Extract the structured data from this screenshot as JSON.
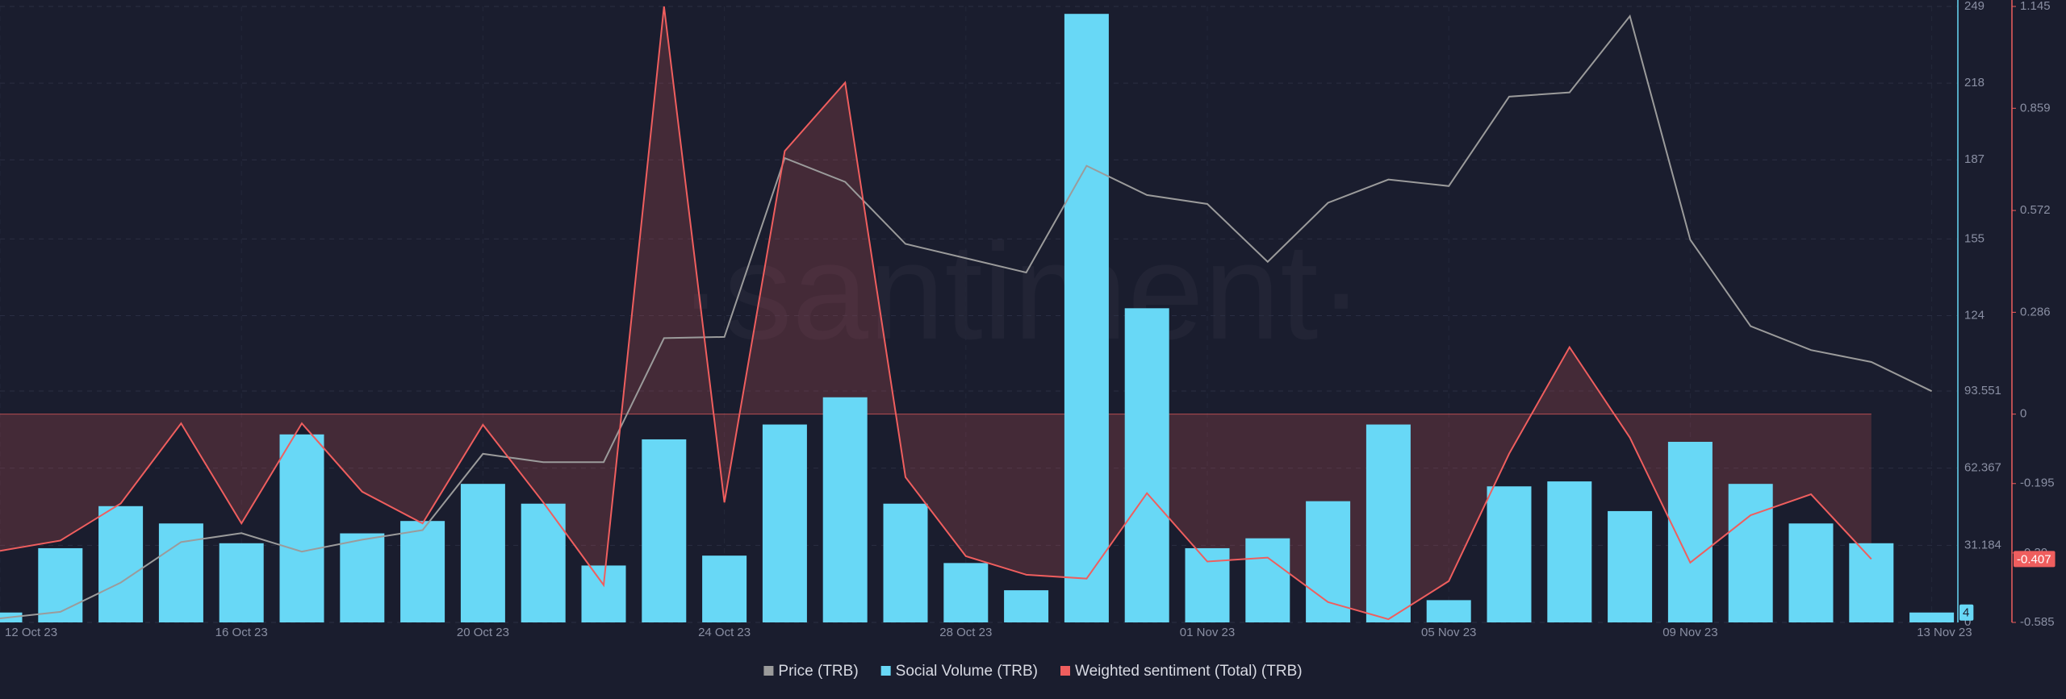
{
  "chart_data": {
    "type": "combo",
    "watermark": "·santiment·",
    "categories": [
      "12 Oct 23",
      null,
      null,
      null,
      "16 Oct 23",
      null,
      null,
      null,
      "20 Oct 23",
      null,
      null,
      null,
      "24 Oct 23",
      null,
      null,
      null,
      "28 Oct 23",
      null,
      null,
      null,
      "01 Nov 23",
      null,
      null,
      null,
      "05 Nov 23",
      null,
      null,
      null,
      "09 Nov 23",
      null,
      null,
      null,
      "13 Nov 23"
    ],
    "series": [
      {
        "name": "Price (TRB)",
        "type": "line",
        "color": "#9b9b9b",
        "values": [
          37,
          38.1,
          43,
          49.8,
          51.3,
          48.2,
          50.2,
          51.8,
          64.6,
          63.2,
          63.2,
          84,
          84.2,
          114.2,
          110.2,
          99.8,
          97.4,
          95,
          112.9,
          108,
          106.5,
          96.8,
          106.7,
          110.6,
          109.5,
          124.5,
          125.2,
          138,
          100.5,
          86,
          82,
          80,
          75.1
        ]
      },
      {
        "name": "Social Volume (TRB)",
        "type": "bar",
        "color": "#68d8f6",
        "axis": "y",
        "values": [
          4,
          30,
          47,
          40,
          32,
          76,
          36,
          41,
          56,
          48,
          23,
          74,
          27,
          80,
          91,
          48,
          24,
          13,
          246,
          127,
          30,
          34,
          49,
          80,
          9,
          55,
          57,
          45,
          73,
          56,
          40,
          32,
          4
        ]
      },
      {
        "name": "Weighted sentiment (Total) (TRB)",
        "type": "area",
        "color": "#ef5e5e",
        "axis": "y2",
        "values": [
          -0.384,
          -0.355,
          -0.251,
          -0.026,
          -0.307,
          -0.026,
          -0.218,
          -0.307,
          -0.03,
          -0.248,
          -0.48,
          1.145,
          -0.248,
          0.739,
          0.931,
          -0.177,
          -0.399,
          -0.451,
          -0.462,
          -0.222,
          -0.414,
          -0.403,
          -0.528,
          -0.576,
          -0.469,
          -0.111,
          0.188,
          -0.066,
          -0.417,
          -0.284,
          -0.225,
          -0.407,
          null
        ]
      }
    ],
    "ylim": [
      0,
      249
    ],
    "yticks": [
      0,
      31.184,
      62.367,
      93.551,
      124,
      155,
      187,
      218,
      249
    ],
    "y2lim": [
      -0.585,
      1.145
    ],
    "y2ticks": [
      -0.585,
      -0.39,
      -0.195,
      0,
      0.286,
      0.572,
      0.859,
      1.145
    ],
    "grid": true
  }
}
